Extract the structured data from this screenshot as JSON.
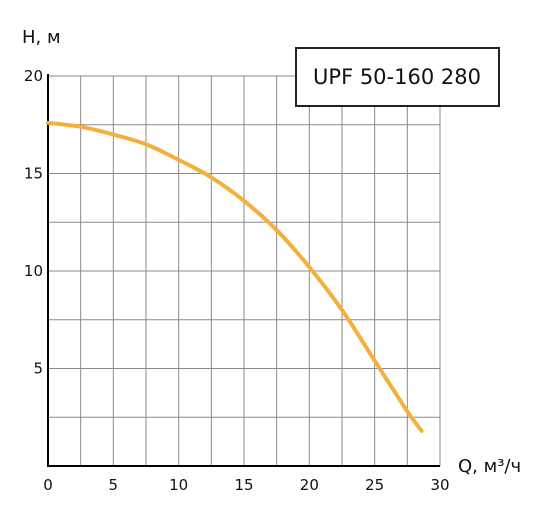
{
  "chart_data": {
    "type": "line",
    "title": "",
    "xlabel": "Q, м³/ч",
    "ylabel": "Н, м",
    "xlim": [
      0,
      30
    ],
    "ylim": [
      0,
      20
    ],
    "x_ticks": [
      0,
      5,
      10,
      15,
      20,
      25,
      30
    ],
    "y_ticks": [
      5,
      10,
      15,
      20
    ],
    "grid": true,
    "legend_position": "top-right",
    "series": [
      {
        "name": "UPF 50-160 280",
        "color": "#f4b03c",
        "x": [
          0,
          2.5,
          5,
          7.5,
          10,
          12.5,
          15,
          17.5,
          20,
          22.5,
          25,
          27.5,
          28.6
        ],
        "y": [
          17.6,
          17.4,
          17.0,
          16.5,
          15.7,
          14.8,
          13.6,
          12.1,
          10.2,
          8.0,
          5.4,
          2.8,
          1.8
        ]
      }
    ]
  }
}
